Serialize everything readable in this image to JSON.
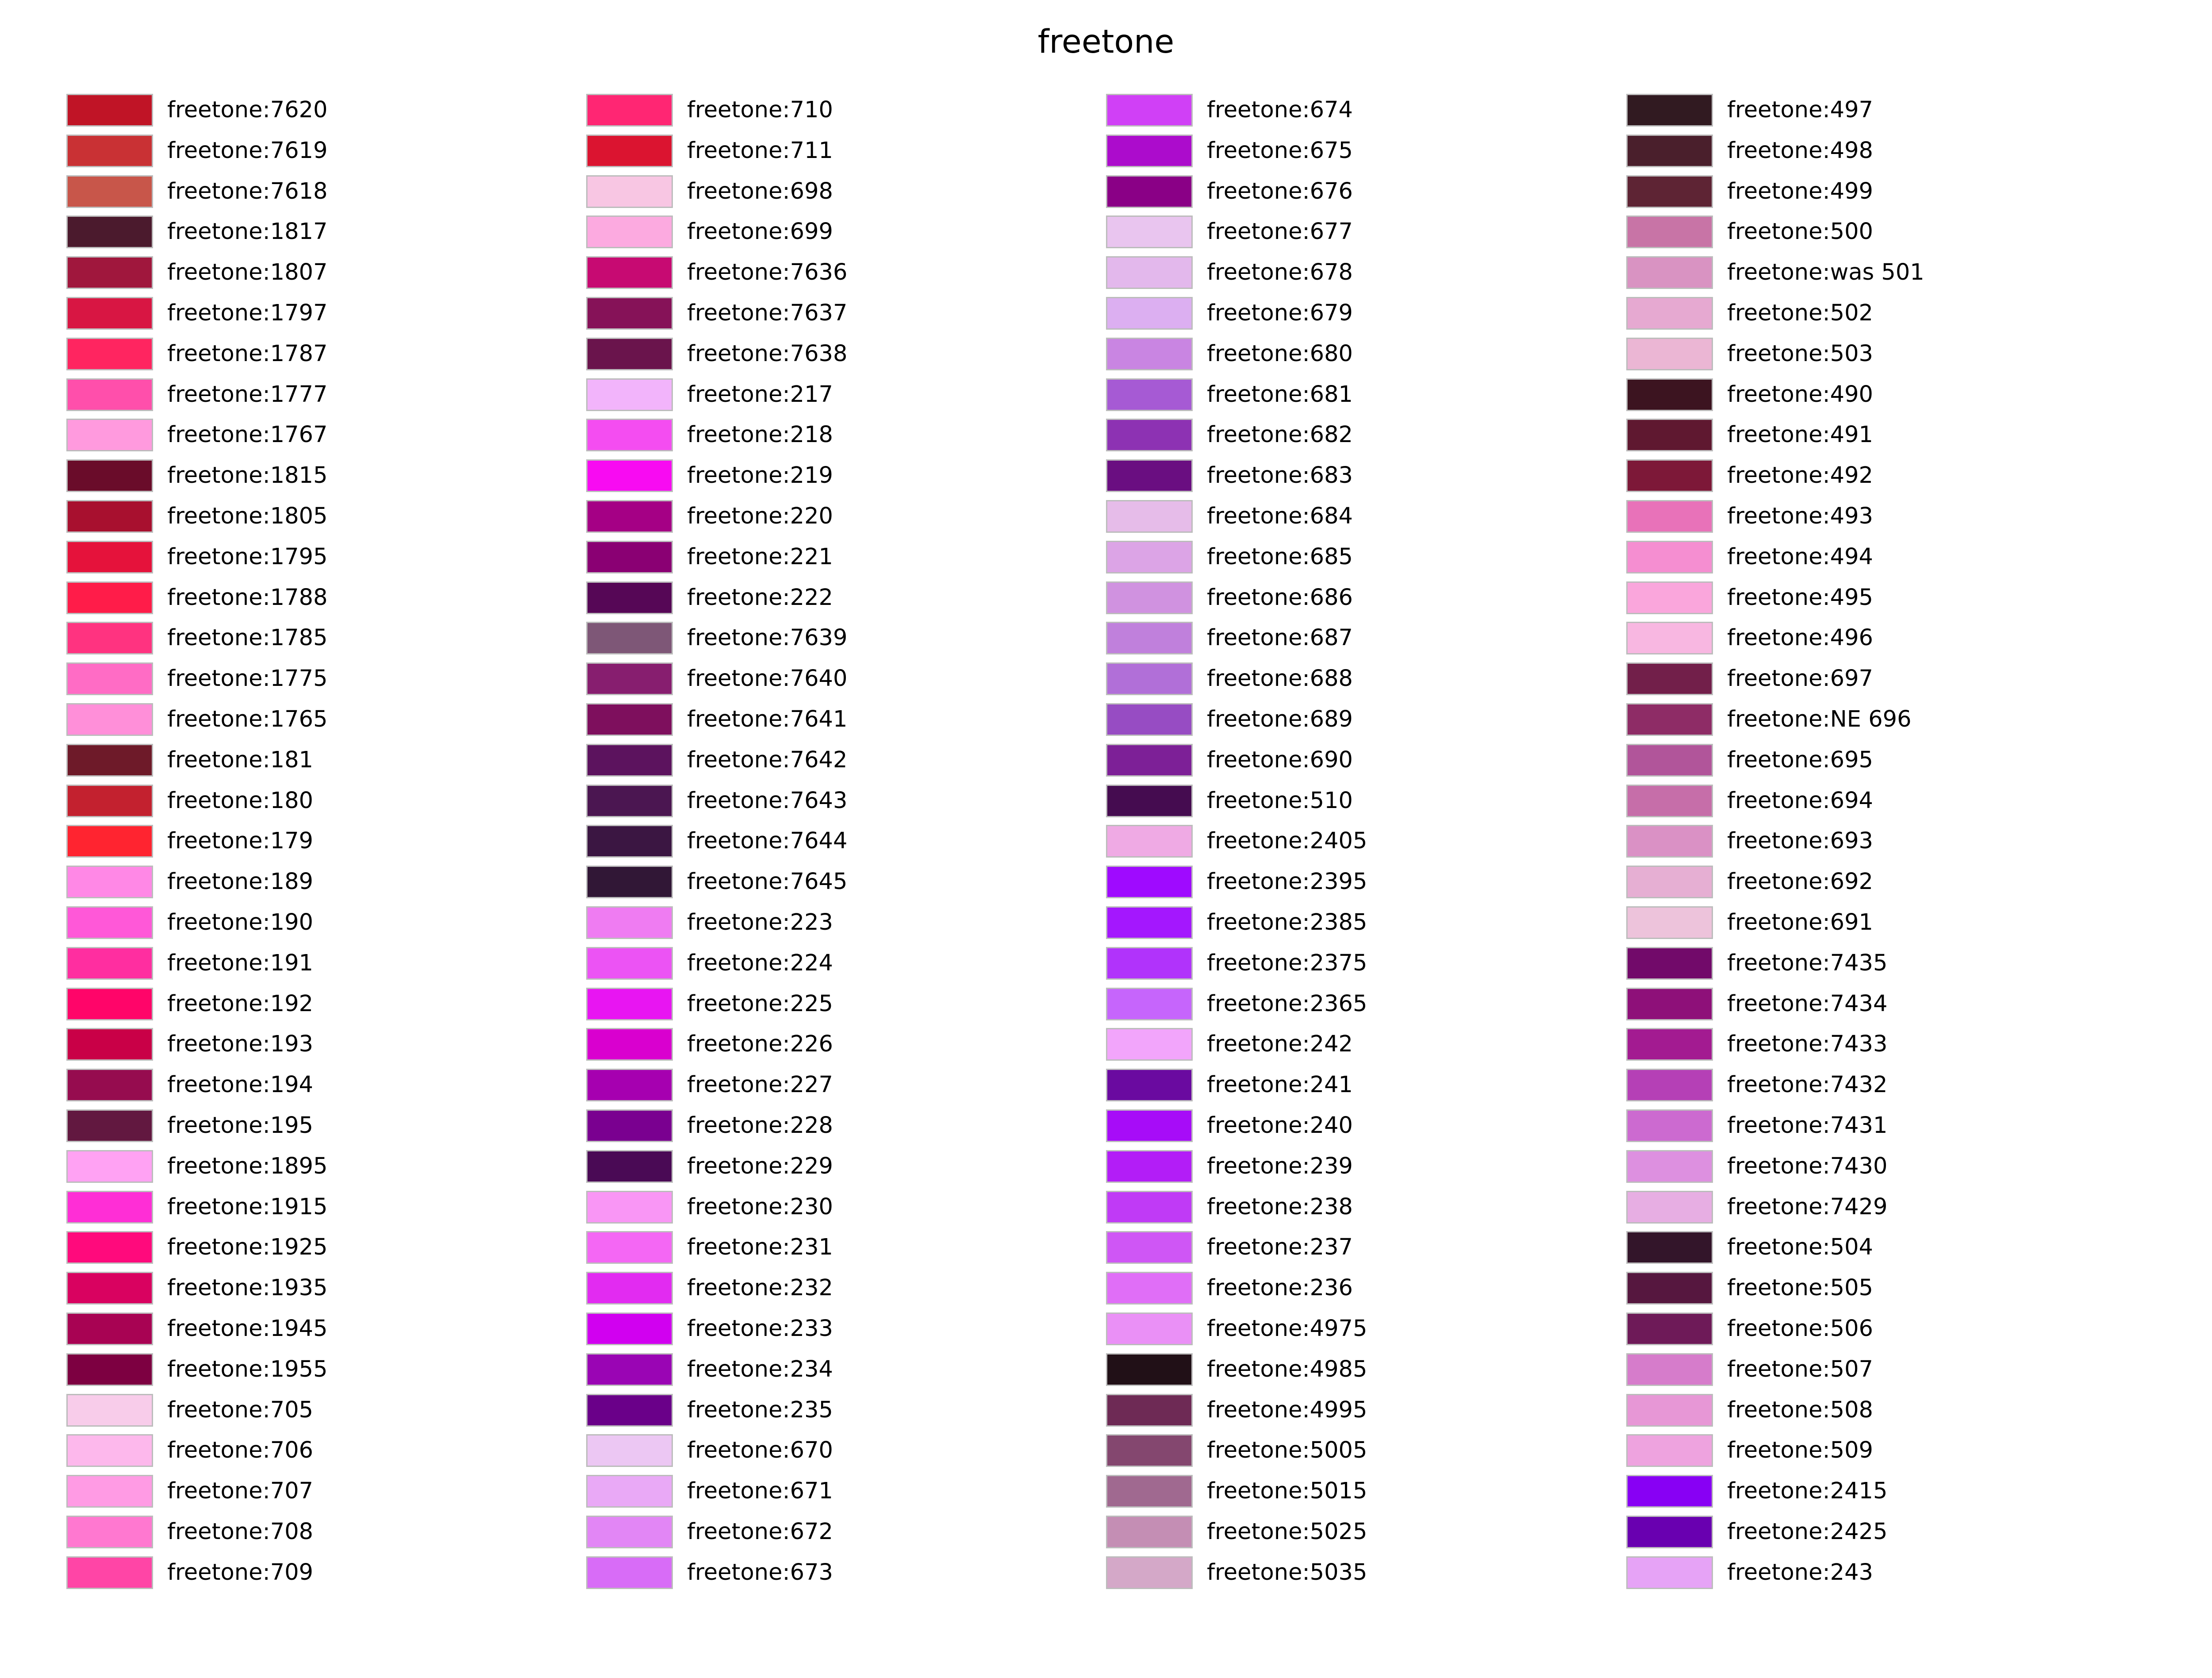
{
  "chart_data": {
    "type": "table",
    "title": "freetone",
    "columns": [
      [
        {
          "name": "freetone:7620",
          "color": "#c01426"
        },
        {
          "name": "freetone:7619",
          "color": "#c93134"
        },
        {
          "name": "freetone:7618",
          "color": "#c8564a"
        },
        {
          "name": "freetone:1817",
          "color": "#4b1a2d"
        },
        {
          "name": "freetone:1807",
          "color": "#a0173d"
        },
        {
          "name": "freetone:1797",
          "color": "#d81643"
        },
        {
          "name": "freetone:1787",
          "color": "#ff2560"
        },
        {
          "name": "freetone:1777",
          "color": "#ff4fab"
        },
        {
          "name": "freetone:1767",
          "color": "#ff9ade"
        },
        {
          "name": "freetone:1815",
          "color": "#6a0c2a"
        },
        {
          "name": "freetone:1805",
          "color": "#a8102f"
        },
        {
          "name": "freetone:1795",
          "color": "#e5123b"
        },
        {
          "name": "freetone:1788",
          "color": "#ff1c49"
        },
        {
          "name": "freetone:1785",
          "color": "#ff3380"
        },
        {
          "name": "freetone:1775",
          "color": "#ff6cc5"
        },
        {
          "name": "freetone:1765",
          "color": "#ff8fd9"
        },
        {
          "name": "freetone:181",
          "color": "#6e1a29"
        },
        {
          "name": "freetone:180",
          "color": "#c3212f"
        },
        {
          "name": "freetone:179",
          "color": "#ff2430"
        },
        {
          "name": "freetone:189",
          "color": "#ff88e6"
        },
        {
          "name": "freetone:190",
          "color": "#ff58d8"
        },
        {
          "name": "freetone:191",
          "color": "#ff2ea0"
        },
        {
          "name": "freetone:192",
          "color": "#ff0569"
        },
        {
          "name": "freetone:193",
          "color": "#c90047"
        },
        {
          "name": "freetone:194",
          "color": "#960c4f"
        },
        {
          "name": "freetone:195",
          "color": "#621840"
        },
        {
          "name": "freetone:1895",
          "color": "#ffa2f3"
        },
        {
          "name": "freetone:1915",
          "color": "#ff2ed6"
        },
        {
          "name": "freetone:1925",
          "color": "#ff0a7c"
        },
        {
          "name": "freetone:1935",
          "color": "#d90260"
        },
        {
          "name": "freetone:1945",
          "color": "#a80353"
        },
        {
          "name": "freetone:1955",
          "color": "#7d0041"
        },
        {
          "name": "freetone:705",
          "color": "#f8ccea"
        },
        {
          "name": "freetone:706",
          "color": "#fdb8ec"
        },
        {
          "name": "freetone:707",
          "color": "#ff9be4"
        },
        {
          "name": "freetone:708",
          "color": "#ff78d0"
        },
        {
          "name": "freetone:709",
          "color": "#ff45a6"
        }
      ],
      [
        {
          "name": "freetone:710",
          "color": "#ff2673"
        },
        {
          "name": "freetone:711",
          "color": "#db1430"
        },
        {
          "name": "freetone:698",
          "color": "#f8c6e3"
        },
        {
          "name": "freetone:699",
          "color": "#fcaae0"
        },
        {
          "name": "freetone:7636",
          "color": "#c70a72"
        },
        {
          "name": "freetone:7637",
          "color": "#861258"
        },
        {
          "name": "freetone:7638",
          "color": "#6a144c"
        },
        {
          "name": "freetone:217",
          "color": "#f2b4fb"
        },
        {
          "name": "freetone:218",
          "color": "#f44df1"
        },
        {
          "name": "freetone:219",
          "color": "#f80bf2"
        },
        {
          "name": "freetone:220",
          "color": "#a50085"
        },
        {
          "name": "freetone:221",
          "color": "#8a0073"
        },
        {
          "name": "freetone:222",
          "color": "#560756"
        },
        {
          "name": "freetone:7639",
          "color": "#7e5777"
        },
        {
          "name": "freetone:7640",
          "color": "#871e6f"
        },
        {
          "name": "freetone:7641",
          "color": "#7e0f5d"
        },
        {
          "name": "freetone:7642",
          "color": "#5c135e"
        },
        {
          "name": "freetone:7643",
          "color": "#4b1651"
        },
        {
          "name": "freetone:7644",
          "color": "#3b1642"
        },
        {
          "name": "freetone:7645",
          "color": "#311736"
        },
        {
          "name": "freetone:223",
          "color": "#ef7cf2"
        },
        {
          "name": "freetone:224",
          "color": "#ec53f4"
        },
        {
          "name": "freetone:225",
          "color": "#e815f2"
        },
        {
          "name": "freetone:226",
          "color": "#d900cf"
        },
        {
          "name": "freetone:227",
          "color": "#a600b0"
        },
        {
          "name": "freetone:228",
          "color": "#7a0090"
        },
        {
          "name": "freetone:229",
          "color": "#4a0a55"
        },
        {
          "name": "freetone:230",
          "color": "#f996f5"
        },
        {
          "name": "freetone:231",
          "color": "#f467f4"
        },
        {
          "name": "freetone:232",
          "color": "#e22bf1"
        },
        {
          "name": "freetone:233",
          "color": "#d100f0"
        },
        {
          "name": "freetone:234",
          "color": "#9a05b4"
        },
        {
          "name": "freetone:235",
          "color": "#6a0089"
        },
        {
          "name": "freetone:670",
          "color": "#ecc7f3"
        },
        {
          "name": "freetone:671",
          "color": "#e9a9f6"
        },
        {
          "name": "freetone:672",
          "color": "#e286f5"
        },
        {
          "name": "freetone:673",
          "color": "#d86cf7"
        }
      ],
      [
        {
          "name": "freetone:674",
          "color": "#d040f6"
        },
        {
          "name": "freetone:675",
          "color": "#ac0ccc"
        },
        {
          "name": "freetone:676",
          "color": "#8a0086"
        },
        {
          "name": "freetone:677",
          "color": "#e9c5ef"
        },
        {
          "name": "freetone:678",
          "color": "#e3b8ec"
        },
        {
          "name": "freetone:679",
          "color": "#dcaff1"
        },
        {
          "name": "freetone:680",
          "color": "#c985e2"
        },
        {
          "name": "freetone:681",
          "color": "#a65ad4"
        },
        {
          "name": "freetone:682",
          "color": "#8d32b3"
        },
        {
          "name": "freetone:683",
          "color": "#6a0e81"
        },
        {
          "name": "freetone:684",
          "color": "#e6bce9"
        },
        {
          "name": "freetone:685",
          "color": "#dca4e6"
        },
        {
          "name": "freetone:686",
          "color": "#d092e0"
        },
        {
          "name": "freetone:687",
          "color": "#c080dc"
        },
        {
          "name": "freetone:688",
          "color": "#b16fd8"
        },
        {
          "name": "freetone:689",
          "color": "#974cc3"
        },
        {
          "name": "freetone:690",
          "color": "#7d2097"
        },
        {
          "name": "freetone:510",
          "color": "#450c50"
        },
        {
          "name": "freetone:2405",
          "color": "#efaae4"
        },
        {
          "name": "freetone:2395",
          "color": "#9f0aff"
        },
        {
          "name": "freetone:2385",
          "color": "#a417fe"
        },
        {
          "name": "freetone:2375",
          "color": "#b133fb"
        },
        {
          "name": "freetone:2365",
          "color": "#c665fc"
        },
        {
          "name": "freetone:242",
          "color": "#f2a5fb"
        },
        {
          "name": "freetone:241",
          "color": "#6a0aa0"
        },
        {
          "name": "freetone:240",
          "color": "#a70cf8"
        },
        {
          "name": "freetone:239",
          "color": "#b31df7"
        },
        {
          "name": "freetone:238",
          "color": "#c03af6"
        },
        {
          "name": "freetone:237",
          "color": "#cf56f5"
        },
        {
          "name": "freetone:236",
          "color": "#e06ef7"
        },
        {
          "name": "freetone:4975",
          "color": "#ea90f6"
        },
        {
          "name": "freetone:4985",
          "color": "#211017"
        },
        {
          "name": "freetone:4995",
          "color": "#6e2a55"
        },
        {
          "name": "freetone:5005",
          "color": "#84476f"
        },
        {
          "name": "freetone:5015",
          "color": "#a06990"
        },
        {
          "name": "freetone:5025",
          "color": "#c48eb4"
        },
        {
          "name": "freetone:5035",
          "color": "#d4a8c8"
        }
      ],
      [
        {
          "name": "freetone:497",
          "color": "#311a21"
        },
        {
          "name": "freetone:498",
          "color": "#4a1f2c"
        },
        {
          "name": "freetone:499",
          "color": "#5e2434"
        },
        {
          "name": "freetone:500",
          "color": "#c874a6"
        },
        {
          "name": "freetone:was 501",
          "color": "#d993c2"
        },
        {
          "name": "freetone:502",
          "color": "#e6a9d1"
        },
        {
          "name": "freetone:503",
          "color": "#ebb6d4"
        },
        {
          "name": "freetone:490",
          "color": "#3c1420"
        },
        {
          "name": "freetone:491",
          "color": "#5f1830"
        },
        {
          "name": "freetone:492",
          "color": "#7d1838"
        },
        {
          "name": "freetone:493",
          "color": "#e872b9"
        },
        {
          "name": "freetone:494",
          "color": "#f58ed1"
        },
        {
          "name": "freetone:495",
          "color": "#faa6dc"
        },
        {
          "name": "freetone:496",
          "color": "#f8b7e1"
        },
        {
          "name": "freetone:697",
          "color": "#721f4a"
        },
        {
          "name": "freetone:NE 696",
          "color": "#8e2c66"
        },
        {
          "name": "freetone:695",
          "color": "#b1559a"
        },
        {
          "name": "freetone:694",
          "color": "#c66ea9"
        },
        {
          "name": "freetone:693",
          "color": "#da91c5"
        },
        {
          "name": "freetone:692",
          "color": "#e6afd3"
        },
        {
          "name": "freetone:691",
          "color": "#edc3db"
        },
        {
          "name": "freetone:7435",
          "color": "#720a6a"
        },
        {
          "name": "freetone:7434",
          "color": "#8e1079"
        },
        {
          "name": "freetone:7433",
          "color": "#a31b91"
        },
        {
          "name": "freetone:7432",
          "color": "#b540b6"
        },
        {
          "name": "freetone:7431",
          "color": "#cc6ad0"
        },
        {
          "name": "freetone:7430",
          "color": "#dd90e0"
        },
        {
          "name": "freetone:7429",
          "color": "#e7aee3"
        },
        {
          "name": "freetone:504",
          "color": "#33152a"
        },
        {
          "name": "freetone:505",
          "color": "#56173f"
        },
        {
          "name": "freetone:506",
          "color": "#6e1a58"
        },
        {
          "name": "freetone:507",
          "color": "#d67ccb"
        },
        {
          "name": "freetone:508",
          "color": "#e797d6"
        },
        {
          "name": "freetone:509",
          "color": "#eea3df"
        },
        {
          "name": "freetone:2415",
          "color": "#8800f4"
        },
        {
          "name": "freetone:2425",
          "color": "#6900b0"
        },
        {
          "name": "freetone:243",
          "color": "#e6a3f6"
        }
      ]
    ]
  }
}
